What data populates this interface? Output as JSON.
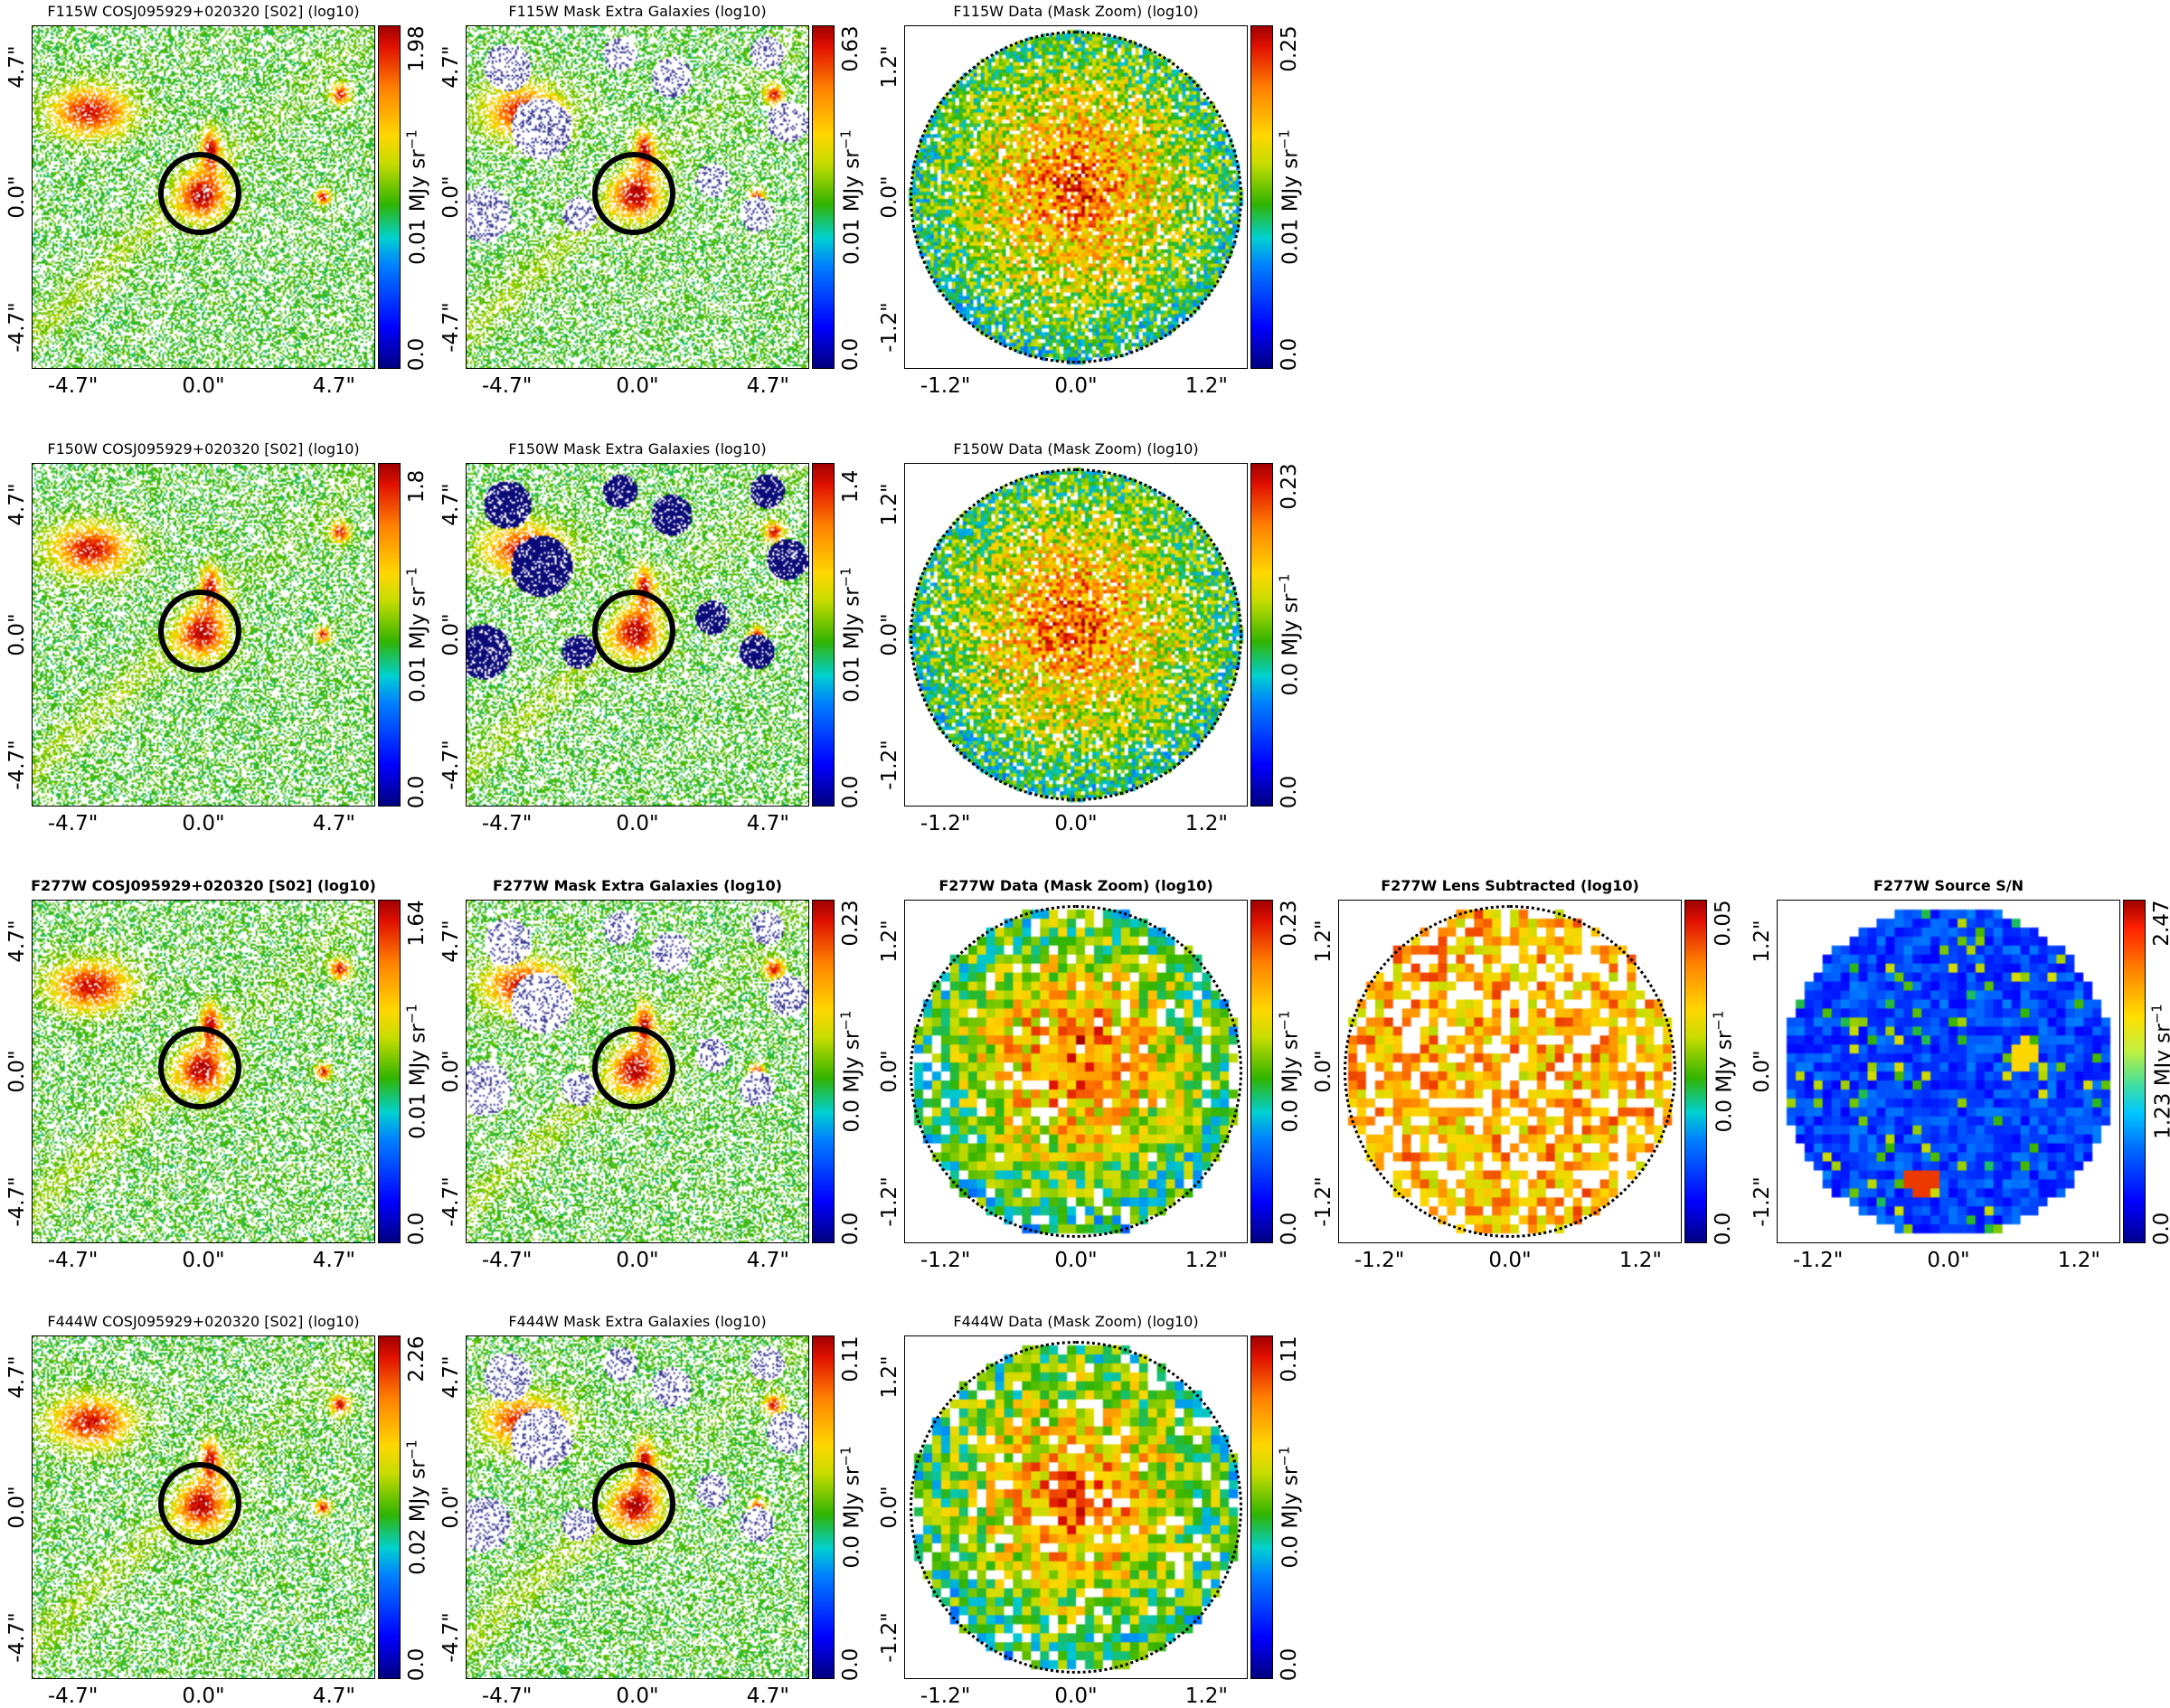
{
  "figure": {
    "rows": [
      {
        "filter": "F115W",
        "panels": [
          {
            "title": "F115W COSJ095929+020320 [S02] (log10)",
            "bold": false,
            "kind": "full",
            "xticks": [
              "-4.7\"",
              "0.0\"",
              "4.7\""
            ],
            "yticks": [
              "4.7\"",
              "0.0\"",
              "-4.7\""
            ],
            "cbar": {
              "top": "1.98",
              "mid": "0.01 MJy sr",
              "bottom": "0.0"
            }
          },
          {
            "title": "F115W Mask Extra Galaxies (log10)",
            "bold": false,
            "kind": "mask-light",
            "xticks": [
              "-4.7\"",
              "0.0\"",
              "4.7\""
            ],
            "yticks": [
              "4.7\"",
              "0.0\"",
              "-4.7\""
            ],
            "cbar": {
              "top": "0.63",
              "mid": "0.01 MJy sr",
              "bottom": "0.0"
            }
          },
          {
            "title": "F115W Data (Mask Zoom) (log10)",
            "bold": false,
            "kind": "zoom-fine",
            "xticks": [
              "-1.2\"",
              "0.0\"",
              "1.2\""
            ],
            "yticks": [
              "1.2\"",
              "0.0\"",
              "-1.2\""
            ],
            "cbar": {
              "top": "0.25",
              "mid": "0.01 MJy sr",
              "bottom": "0.0"
            }
          }
        ]
      },
      {
        "filter": "F150W",
        "panels": [
          {
            "title": "F150W COSJ095929+020320 [S02] (log10)",
            "bold": false,
            "kind": "full",
            "xticks": [
              "-4.7\"",
              "0.0\"",
              "4.7\""
            ],
            "yticks": [
              "4.7\"",
              "0.0\"",
              "-4.7\""
            ],
            "cbar": {
              "top": "1.8",
              "mid": "0.01 MJy sr",
              "bottom": "0.0"
            }
          },
          {
            "title": "F150W Mask Extra Galaxies (log10)",
            "bold": false,
            "kind": "mask-dark",
            "xticks": [
              "-4.7\"",
              "0.0\"",
              "4.7\""
            ],
            "yticks": [
              "4.7\"",
              "0.0\"",
              "-4.7\""
            ],
            "cbar": {
              "top": "1.4",
              "mid": "0.01 MJy sr",
              "bottom": "0.0"
            }
          },
          {
            "title": "F150W Data (Mask Zoom) (log10)",
            "bold": false,
            "kind": "zoom-fine",
            "xticks": [
              "-1.2\"",
              "0.0\"",
              "1.2\""
            ],
            "yticks": [
              "1.2\"",
              "0.0\"",
              "-1.2\""
            ],
            "cbar": {
              "top": "0.23",
              "mid": "0.0 MJy sr",
              "bottom": "0.0"
            }
          }
        ]
      },
      {
        "filter": "F277W",
        "panels": [
          {
            "title": "F277W COSJ095929+020320 [S02] (log10)",
            "bold": true,
            "kind": "full",
            "xticks": [
              "-4.7\"",
              "0.0\"",
              "4.7\""
            ],
            "yticks": [
              "4.7\"",
              "0.0\"",
              "-4.7\""
            ],
            "cbar": {
              "top": "1.64",
              "mid": "0.01 MJy sr",
              "bottom": "0.0"
            }
          },
          {
            "title": "F277W Mask Extra Galaxies (log10)",
            "bold": true,
            "kind": "mask-light",
            "xticks": [
              "-4.7\"",
              "0.0\"",
              "4.7\""
            ],
            "yticks": [
              "4.7\"",
              "0.0\"",
              "-4.7\""
            ],
            "cbar": {
              "top": "0.23",
              "mid": "0.0 MJy sr",
              "bottom": "0.0"
            }
          },
          {
            "title": "F277W Data (Mask Zoom) (log10)",
            "bold": true,
            "kind": "zoom-coarse",
            "xticks": [
              "-1.2\"",
              "0.0\"",
              "1.2\""
            ],
            "yticks": [
              "1.2\"",
              "0.0\"",
              "-1.2\""
            ],
            "cbar": {
              "top": "0.23",
              "mid": "0.0 MJy sr",
              "bottom": "0.0"
            }
          },
          {
            "title": "F277W Lens Subtracted (log10)",
            "bold": true,
            "kind": "lens-sub",
            "xticks": [
              "-1.2\"",
              "0.0\"",
              "1.2\""
            ],
            "yticks": [
              "1.2\"",
              "0.0\"",
              "-1.2\""
            ],
            "cbar": {
              "top": "0.05",
              "mid": "0.0 MJy sr",
              "bottom": "0.0"
            }
          },
          {
            "title": "F277W Source S/N",
            "bold": true,
            "kind": "snr",
            "xticks": [
              "-1.2\"",
              "0.0\"",
              "1.2\""
            ],
            "yticks": [
              "1.2\"",
              "0.0\"",
              "-1.2\""
            ],
            "cbar": {
              "top": "2.47",
              "mid": "1.23 MJy sr",
              "bottom": "0.0"
            }
          }
        ]
      },
      {
        "filter": "F444W",
        "panels": [
          {
            "title": "F444W COSJ095929+020320 [S02] (log10)",
            "bold": false,
            "kind": "full",
            "xticks": [
              "-4.7\"",
              "0.0\"",
              "4.7\""
            ],
            "yticks": [
              "4.7\"",
              "0.0\"",
              "-4.7\""
            ],
            "cbar": {
              "top": "2.26",
              "mid": "0.02 MJy sr",
              "bottom": "0.0"
            }
          },
          {
            "title": "F444W Mask Extra Galaxies (log10)",
            "bold": false,
            "kind": "mask-light",
            "xticks": [
              "-4.7\"",
              "0.0\"",
              "4.7\""
            ],
            "yticks": [
              "4.7\"",
              "0.0\"",
              "-4.7\""
            ],
            "cbar": {
              "top": "0.11",
              "mid": "0.0 MJy sr",
              "bottom": "0.0"
            }
          },
          {
            "title": "F444W Data (Mask Zoom) (log10)",
            "bold": false,
            "kind": "zoom-coarse",
            "xticks": [
              "-1.2\"",
              "0.0\"",
              "1.2\""
            ],
            "yticks": [
              "1.2\"",
              "0.0\"",
              "-1.2\""
            ],
            "cbar": {
              "top": "0.11",
              "mid": "0.0 MJy sr",
              "bottom": "0.0"
            }
          }
        ]
      }
    ],
    "unit_exponent": "−1"
  },
  "chart_data": {
    "type": "heatmap",
    "colormap": "jet",
    "images": [
      {
        "title": "F115W COSJ095929+020320 [S02] (log10)",
        "extent_arcsec": [
          -4.7,
          4.7
        ],
        "cbar_range": [
          0.0,
          1.98
        ],
        "cbar_label": "MJy sr−1"
      },
      {
        "title": "F115W Mask Extra Galaxies (log10)",
        "extent_arcsec": [
          -4.7,
          4.7
        ],
        "cbar_range": [
          0.0,
          0.63
        ],
        "cbar_label": "MJy sr−1"
      },
      {
        "title": "F115W Data (Mask Zoom) (log10)",
        "extent_arcsec": [
          -1.2,
          1.2
        ],
        "cbar_range": [
          0.0,
          0.25
        ],
        "cbar_label": "MJy sr−1"
      },
      {
        "title": "F150W COSJ095929+020320 [S02] (log10)",
        "extent_arcsec": [
          -4.7,
          4.7
        ],
        "cbar_range": [
          0.0,
          1.8
        ],
        "cbar_label": "MJy sr−1"
      },
      {
        "title": "F150W Mask Extra Galaxies (log10)",
        "extent_arcsec": [
          -4.7,
          4.7
        ],
        "cbar_range": [
          0.0,
          1.4
        ],
        "cbar_label": "MJy sr−1"
      },
      {
        "title": "F150W Data (Mask Zoom) (log10)",
        "extent_arcsec": [
          -1.2,
          1.2
        ],
        "cbar_range": [
          0.0,
          0.23
        ],
        "cbar_label": "MJy sr−1"
      },
      {
        "title": "F277W COSJ095929+020320 [S02] (log10)",
        "extent_arcsec": [
          -4.7,
          4.7
        ],
        "cbar_range": [
          0.0,
          1.64
        ],
        "cbar_label": "MJy sr−1"
      },
      {
        "title": "F277W Mask Extra Galaxies (log10)",
        "extent_arcsec": [
          -4.7,
          4.7
        ],
        "cbar_range": [
          0.0,
          0.23
        ],
        "cbar_label": "MJy sr−1"
      },
      {
        "title": "F277W Data (Mask Zoom) (log10)",
        "extent_arcsec": [
          -1.2,
          1.2
        ],
        "cbar_range": [
          0.0,
          0.23
        ],
        "cbar_label": "MJy sr−1"
      },
      {
        "title": "F277W Lens Subtracted (log10)",
        "extent_arcsec": [
          -1.2,
          1.2
        ],
        "cbar_range": [
          0.0,
          0.05
        ],
        "cbar_label": "MJy sr−1"
      },
      {
        "title": "F277W Source S/N",
        "extent_arcsec": [
          -1.2,
          1.2
        ],
        "cbar_range": [
          0.0,
          2.47
        ],
        "cbar_label": "MJy sr−1"
      },
      {
        "title": "F444W COSJ095929+020320 [S02] (log10)",
        "extent_arcsec": [
          -4.7,
          4.7
        ],
        "cbar_range": [
          0.0,
          2.26
        ],
        "cbar_label": "MJy sr−1"
      },
      {
        "title": "F444W Mask Extra Galaxies (log10)",
        "extent_arcsec": [
          -4.7,
          4.7
        ],
        "cbar_range": [
          0.0,
          0.11
        ],
        "cbar_label": "MJy sr−1"
      },
      {
        "title": "F444W Data (Mask Zoom) (log10)",
        "extent_arcsec": [
          -1.2,
          1.2
        ],
        "cbar_range": [
          0.0,
          0.11
        ],
        "cbar_label": "MJy sr−1"
      }
    ]
  }
}
